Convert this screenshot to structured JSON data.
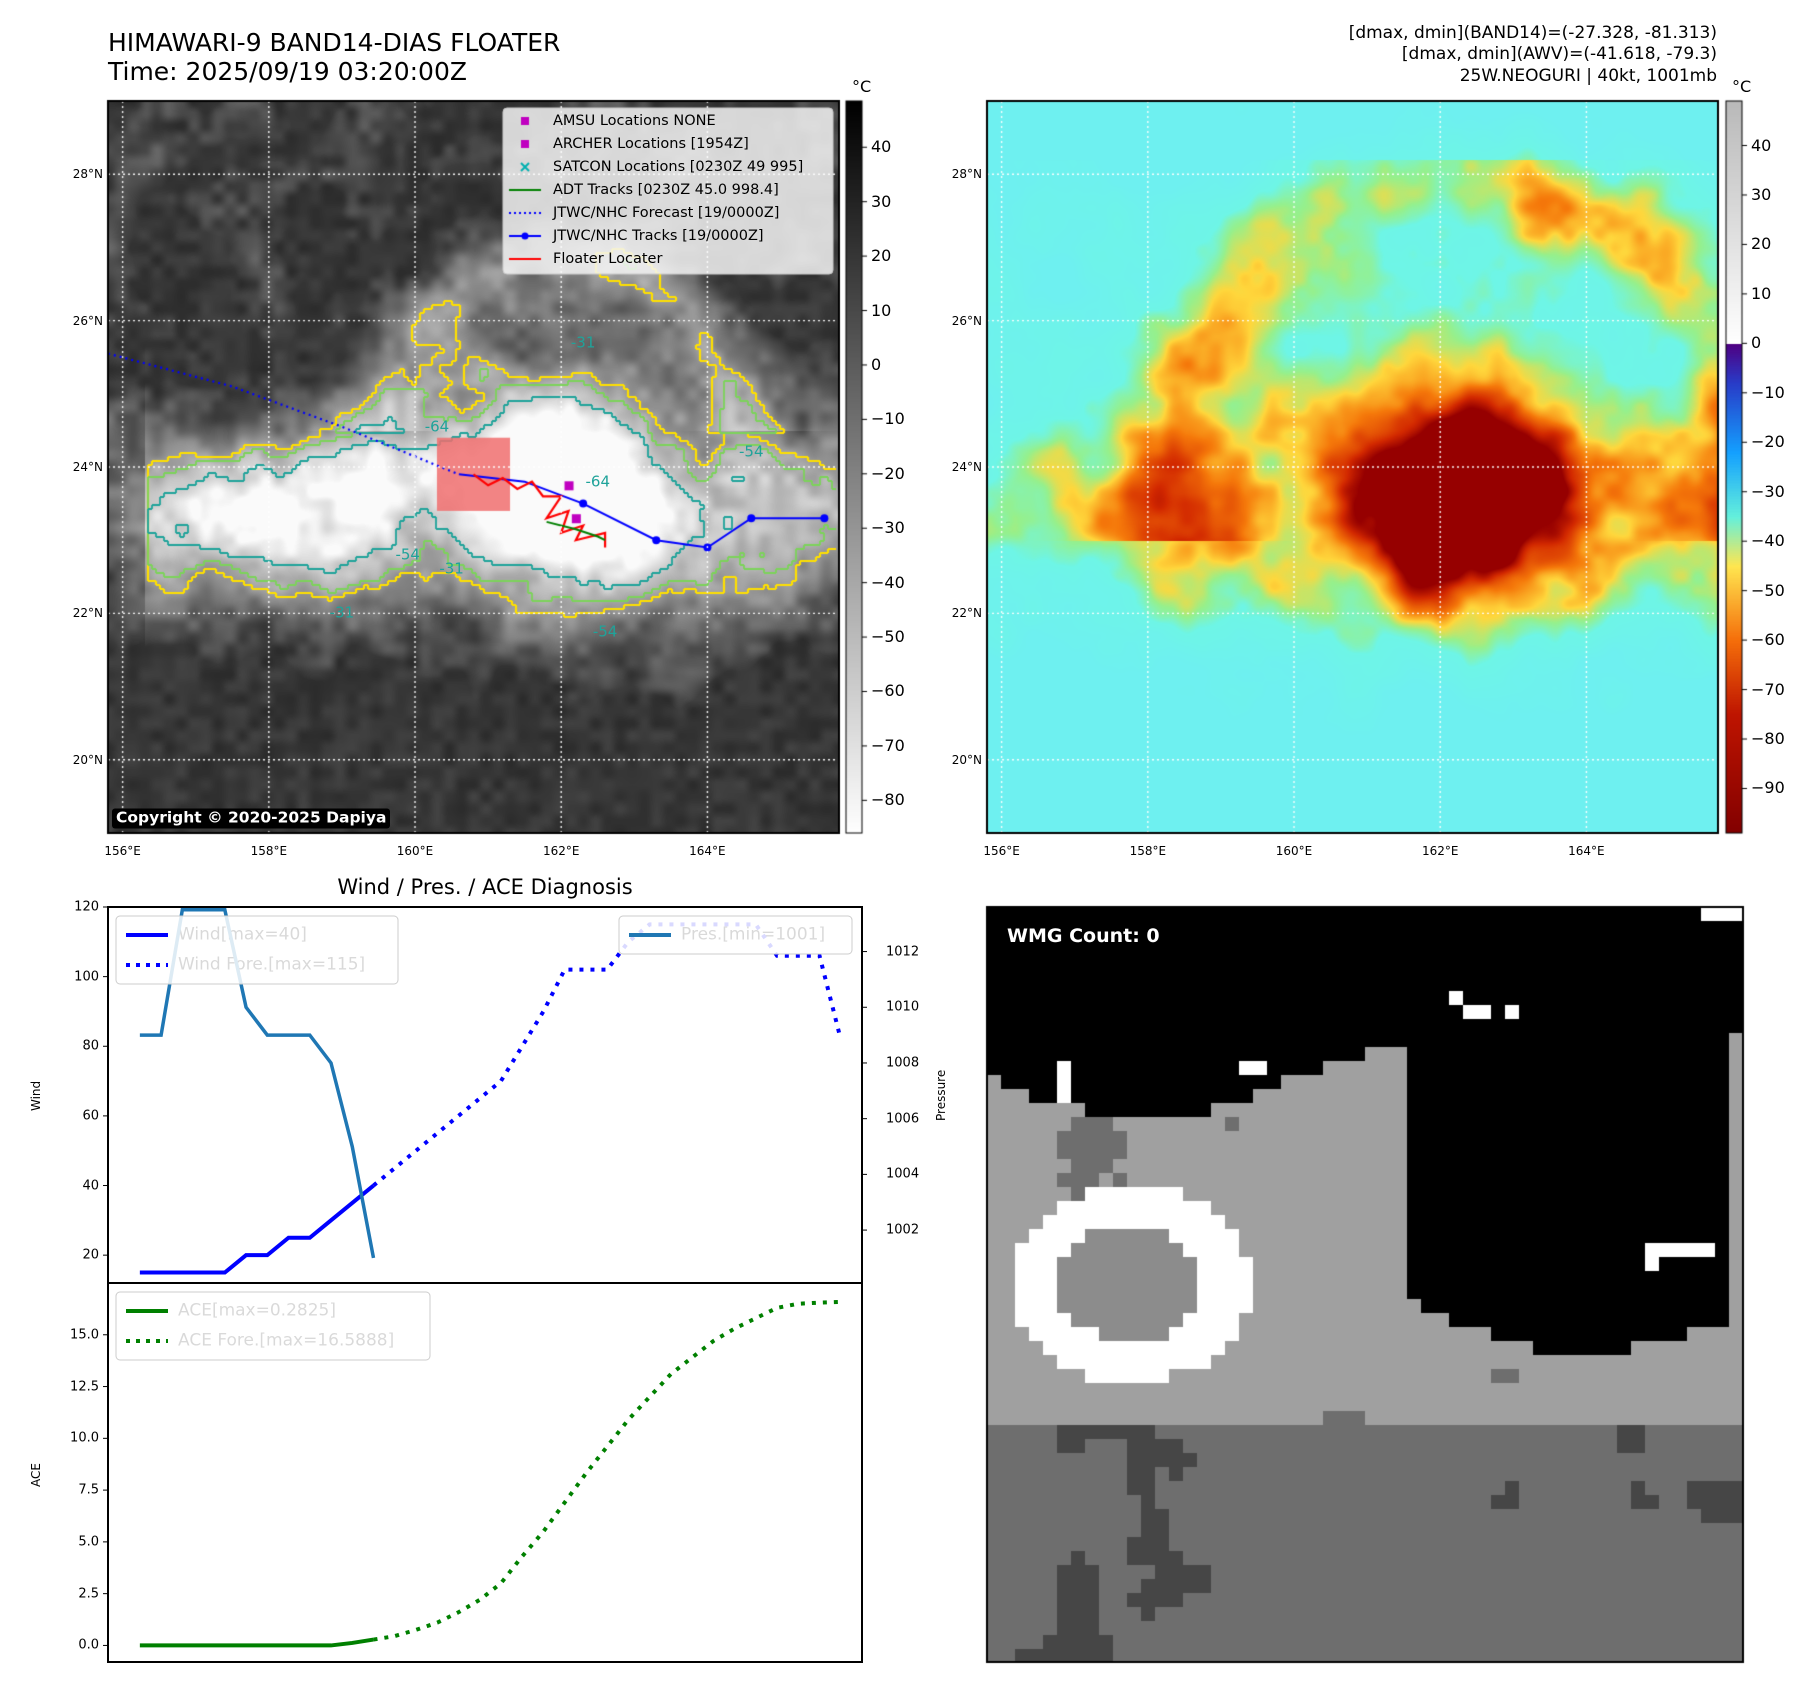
{
  "header": {
    "title_line1": "HIMAWARI-9 BAND14-DIAS FLOATER",
    "title_line2": "Time: 2025/09/19 03:20:00Z",
    "info_line1": "[dmax, dmin](BAND14)=(-27.328, -81.313)",
    "info_line2": "[dmax, dmin](AWV)=(-41.618, -79.3)",
    "info_line3": "25W.NEOGURI | 40kt, 1001mb"
  },
  "map_axes": {
    "lat_labels": [
      "28°N",
      "26°N",
      "24°N",
      "22°N",
      "20°N"
    ],
    "lon_labels": [
      "156°E",
      "158°E",
      "160°E",
      "162°E",
      "164°E"
    ]
  },
  "ir_panel": {
    "copyright": "Copyright © 2020-2025 Dapiya",
    "colorbar_unit": "°C",
    "colorbar_ticks": [
      "40",
      "30",
      "20",
      "10",
      "0",
      "−10",
      "−20",
      "−30",
      "−40",
      "−50",
      "−60",
      "−70",
      "−80"
    ],
    "contour_labels": [
      "-64",
      "-64",
      "-54",
      "-54",
      "-31",
      "-31",
      "-31",
      "-54"
    ],
    "legend": [
      {
        "label": "AMSU Locations NONE",
        "marker": "square",
        "color": "#c000c0"
      },
      {
        "label": "ARCHER Locations [1954Z]",
        "marker": "square",
        "color": "#c000c0"
      },
      {
        "label": "SATCON Locations [0230Z 49 995]",
        "marker": "x",
        "color": "#00b0b0"
      },
      {
        "label": "ADT Tracks [0230Z 45.0 998.4]",
        "marker": "line",
        "color": "#008000"
      },
      {
        "label": "JTWC/NHC Forecast [19/0000Z]",
        "marker": "dotted",
        "color": "#0000ff"
      },
      {
        "label": "JTWC/NHC Tracks [19/0000Z]",
        "marker": "line-dot",
        "color": "#0000ff"
      },
      {
        "label": "Floater Locater",
        "marker": "line",
        "color": "#ff0000"
      }
    ]
  },
  "wv_panel": {
    "colorbar_unit": "°C",
    "colorbar_ticks": [
      "40",
      "30",
      "20",
      "10",
      "0",
      "−10",
      "−20",
      "−30",
      "−40",
      "−50",
      "−60",
      "−70",
      "−80",
      "−90"
    ]
  },
  "wmg_panel": {
    "label": "WMG Count: 0"
  },
  "colors": {
    "wind": "#0000ff",
    "pressure": "#1f77b4",
    "ace": "#008000",
    "ir_yellow_contour": "#ffe000",
    "ir_green_contour": "#7cd35a",
    "ir_teal_contour": "#1fa39a"
  },
  "chart_data": [
    {
      "type": "line",
      "title": "Wind / Pres. / ACE Diagnosis",
      "ylabel": "Wind",
      "ylabel_right": "Pressure",
      "ylim": [
        12,
        120
      ],
      "ylim_right": [
        1000.1,
        1013.6
      ],
      "yticks": [
        20,
        40,
        60,
        80,
        100,
        120
      ],
      "yticks_right": [
        1002,
        1004,
        1006,
        1008,
        1010,
        1012
      ],
      "series": [
        {
          "name": "Wind[max=40]",
          "axis": "left",
          "style": "solid",
          "x": [
            0,
            1,
            2,
            3,
            4,
            5,
            6,
            7,
            8,
            9,
            10,
            11
          ],
          "values": [
            15,
            15,
            15,
            15,
            15,
            20,
            20,
            25,
            25,
            30,
            35,
            40
          ]
        },
        {
          "name": "Wind Fore.[max=115]",
          "axis": "left",
          "style": "dotted",
          "x": [
            11,
            12,
            13,
            14,
            15,
            16,
            17,
            18,
            19,
            20,
            21,
            22,
            23,
            24,
            25,
            26,
            27,
            28,
            29,
            30,
            31,
            32,
            33
          ],
          "values": [
            40,
            45,
            50,
            55,
            60,
            65,
            70,
            80,
            90,
            102,
            102,
            102,
            110,
            115,
            115,
            115,
            115,
            115,
            115,
            106,
            106,
            106,
            82
          ]
        },
        {
          "name": "Pres.[min=1001]",
          "axis": "right",
          "style": "solid",
          "x": [
            0,
            1,
            2,
            3,
            4,
            5,
            6,
            7,
            8,
            9,
            10,
            11
          ],
          "values": [
            1009,
            1009,
            1013.5,
            1013.5,
            1013.5,
            1010,
            1009,
            1009,
            1009,
            1008,
            1005,
            1001
          ]
        }
      ],
      "x_range": [
        -1.5,
        34
      ]
    },
    {
      "type": "line",
      "ylabel": "ACE",
      "ylim": [
        -0.8,
        17.5
      ],
      "yticks": [
        0.0,
        2.5,
        5.0,
        7.5,
        10.0,
        12.5,
        15.0
      ],
      "ytick_labels": [
        "0.0",
        "2.5",
        "5.0",
        "7.5",
        "10.0",
        "12.5",
        "15.0"
      ],
      "series": [
        {
          "name": "ACE[max=0.2825]",
          "style": "solid",
          "x": [
            0,
            1,
            2,
            3,
            4,
            5,
            6,
            7,
            8,
            9,
            10,
            11
          ],
          "values": [
            0,
            0,
            0,
            0,
            0,
            0,
            0,
            0,
            0,
            0,
            0.12,
            0.2825
          ]
        },
        {
          "name": "ACE Fore.[max=16.5888]",
          "style": "dotted",
          "x": [
            11,
            12,
            13,
            14,
            15,
            16,
            17,
            18,
            19,
            20,
            21,
            22,
            23,
            24,
            25,
            26,
            27,
            28,
            29,
            30,
            31,
            32,
            33
          ],
          "values": [
            0.2825,
            0.45,
            0.75,
            1.1,
            1.6,
            2.2,
            3.0,
            4.3,
            5.5,
            6.9,
            8.3,
            9.6,
            10.9,
            12.0,
            13.1,
            13.9,
            14.7,
            15.3,
            15.8,
            16.3,
            16.5,
            16.55,
            16.5888
          ]
        }
      ],
      "x_range": [
        -1.5,
        34
      ]
    }
  ]
}
